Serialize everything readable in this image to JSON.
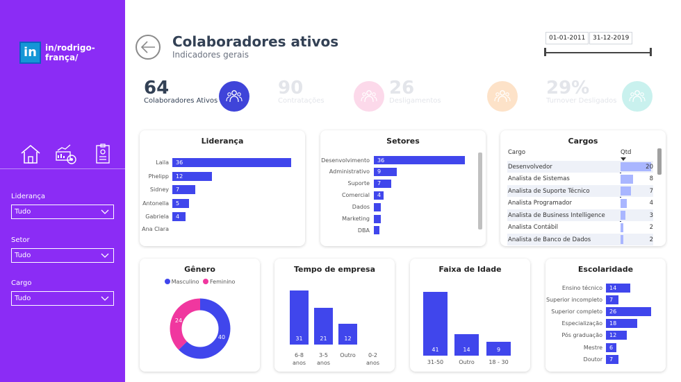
{
  "sidebar": {
    "logo_text": "in/rodrigo-frança/",
    "logo_letters": "in",
    "nav": [
      {
        "name": "home-icon"
      },
      {
        "name": "chart-analytics-icon"
      },
      {
        "name": "badge-icon"
      }
    ],
    "filters": [
      {
        "label": "Liderança",
        "value": "Tudo"
      },
      {
        "label": "Setor",
        "value": "Tudo"
      },
      {
        "label": "Cargo",
        "value": "Tudo"
      }
    ]
  },
  "header": {
    "title": "Colaboradores ativos",
    "subtitle": "Indicadores gerais",
    "date_start": "01-01-2011",
    "date_end": "31-12-2019"
  },
  "kpis": [
    {
      "value": "64",
      "label": "Colaboradores Ativos",
      "color": "#334155",
      "circle": "#3f44d9",
      "active": true
    },
    {
      "value": "90",
      "label": "Contratações",
      "color": "#e3e5ea",
      "circle": "#fcd9ea",
      "active": false
    },
    {
      "value": "26",
      "label": "Desligamentos",
      "color": "#e3e5ea",
      "circle": "#fde2c8",
      "active": false
    },
    {
      "value": "29%",
      "label": "Turnover Desligados",
      "color": "#e3e5ea",
      "circle": "#c9f1ee",
      "active": false
    }
  ],
  "colors": {
    "bar": "#4046ec",
    "female": "#f0379f",
    "male": "#4046ec",
    "sidebar": "#8b2cf5"
  },
  "lideranca": {
    "title": "Liderança",
    "categories": [
      "Laila",
      "Phelipp",
      "Sidney",
      "Antonella",
      "Gabriela",
      "Ana Clara"
    ],
    "values": [
      36,
      12,
      7,
      5,
      4,
      null
    ]
  },
  "setores": {
    "title": "Setores",
    "categories": [
      "Desenvolvimento",
      "Administrativo",
      "Suporte",
      "Comercial",
      "Dados",
      "Marketing",
      "DBA"
    ],
    "values": [
      36,
      9,
      7,
      4,
      null,
      null,
      null
    ],
    "bar_fracs": [
      1,
      0.25,
      0.19,
      0.11,
      0.08,
      0.08,
      0.06
    ]
  },
  "cargos": {
    "title": "Cargos",
    "col_cargo": "Cargo",
    "col_qtd": "Qtd",
    "rows": [
      {
        "name": "Desenvolvedor",
        "qtd": "20",
        "frac": 1
      },
      {
        "name": "Analista de Sistemas",
        "qtd": "8",
        "frac": 0.4
      },
      {
        "name": "Analista de Suporte Técnico",
        "qtd": "7",
        "frac": 0.35
      },
      {
        "name": "Analista Programador",
        "qtd": "4",
        "frac": 0.2
      },
      {
        "name": "Analista de Business Intelligence",
        "qtd": "3",
        "frac": 0.15
      },
      {
        "name": "Analista Contábil",
        "qtd": "2",
        "frac": 0.1
      },
      {
        "name": "Analista de Banco de Dados",
        "qtd": "2",
        "frac": 0.1
      }
    ]
  },
  "genero": {
    "title": "Gênero",
    "legend": [
      "Masculino",
      "Feminino"
    ],
    "male": 40,
    "female": 24
  },
  "tempo": {
    "title": "Tempo de empresa",
    "categories": [
      [
        "6-8",
        "anos"
      ],
      [
        "3-5",
        "anos"
      ],
      [
        "Outro",
        ""
      ],
      [
        "0-2",
        "anos"
      ]
    ],
    "values": [
      31,
      21,
      12,
      null
    ]
  },
  "idade": {
    "title": "Faixa de Idade",
    "categories": [
      "31-50",
      "Outro",
      "18 - 30"
    ],
    "values": [
      41,
      14,
      9
    ]
  },
  "escolaridade": {
    "title": "Escolaridade",
    "categories": [
      "Ensino técnico",
      "Superior incompleto",
      "Superior completo",
      "Especialização",
      "Pós graduação",
      "Mestre",
      "Doutor"
    ],
    "values": [
      14,
      7,
      26,
      18,
      12,
      6,
      7
    ]
  },
  "chart_data": [
    {
      "type": "bar",
      "title": "Liderança",
      "categories": [
        "Laila",
        "Phelipp",
        "Sidney",
        "Antonella",
        "Gabriela",
        "Ana Clara"
      ],
      "values": [
        36,
        12,
        7,
        5,
        4,
        null
      ]
    },
    {
      "type": "bar",
      "title": "Setores",
      "categories": [
        "Desenvolvimento",
        "Administrativo",
        "Suporte",
        "Comercial",
        "Dados",
        "Marketing",
        "DBA"
      ],
      "values": [
        36,
        9,
        7,
        4,
        null,
        null,
        null
      ]
    },
    {
      "type": "table",
      "title": "Cargos",
      "columns": [
        "Cargo",
        "Qtd"
      ],
      "rows": [
        [
          "Desenvolvedor",
          20
        ],
        [
          "Analista de Sistemas",
          8
        ],
        [
          "Analista de Suporte Técnico",
          7
        ],
        [
          "Analista Programador",
          4
        ],
        [
          "Analista de Business Intelligence",
          3
        ],
        [
          "Analista Contábil",
          2
        ],
        [
          "Analista de Banco de Dados",
          2
        ]
      ]
    },
    {
      "type": "pie",
      "title": "Gênero",
      "categories": [
        "Masculino",
        "Feminino"
      ],
      "values": [
        40,
        24
      ]
    },
    {
      "type": "bar",
      "title": "Tempo de empresa",
      "categories": [
        "6-8 anos",
        "3-5 anos",
        "Outro",
        "0-2 anos"
      ],
      "values": [
        31,
        21,
        12,
        null
      ]
    },
    {
      "type": "bar",
      "title": "Faixa de Idade",
      "categories": [
        "31-50",
        "Outro",
        "18 - 30"
      ],
      "values": [
        41,
        14,
        9
      ]
    },
    {
      "type": "bar",
      "title": "Escolaridade",
      "categories": [
        "Ensino técnico",
        "Superior incompleto",
        "Superior completo",
        "Especialização",
        "Pós graduação",
        "Mestre",
        "Doutor"
      ],
      "values": [
        14,
        7,
        26,
        18,
        12,
        6,
        7
      ]
    }
  ]
}
